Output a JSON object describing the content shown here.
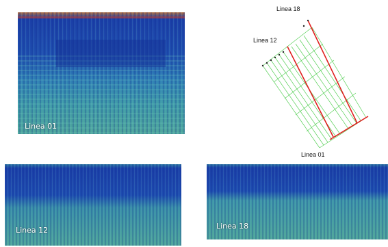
{
  "panels": {
    "linea01": {
      "label": "Linea 01"
    },
    "linea12": {
      "label": "Linea 12"
    },
    "linea18": {
      "label": "Linea 18"
    }
  },
  "map": {
    "label_18": "Linea 18",
    "label_12": "Linea 12",
    "label_01": "Linea 01"
  },
  "colors": {
    "deep": "#1b3fa8",
    "mid": "#2f8fb0",
    "teal": "#4fa59a",
    "red": "#c43a2a",
    "grid_green": "#58d058",
    "highlight_red": "#e02020"
  }
}
